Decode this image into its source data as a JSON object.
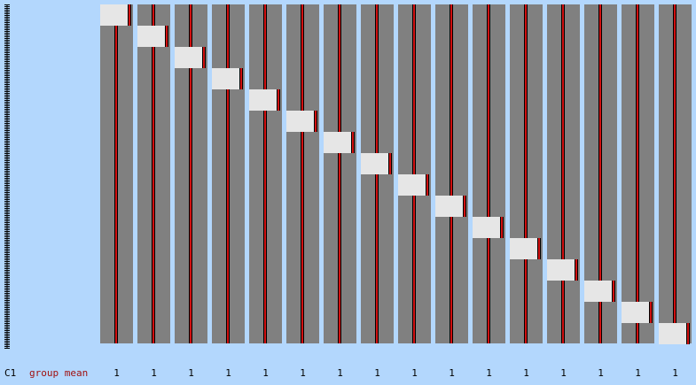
{
  "row_label": "C1",
  "stat_label": "group mean",
  "values": [
    1,
    1,
    1,
    1,
    1,
    1,
    1,
    1,
    1,
    1,
    1,
    1,
    1,
    1,
    1,
    1
  ]
}
